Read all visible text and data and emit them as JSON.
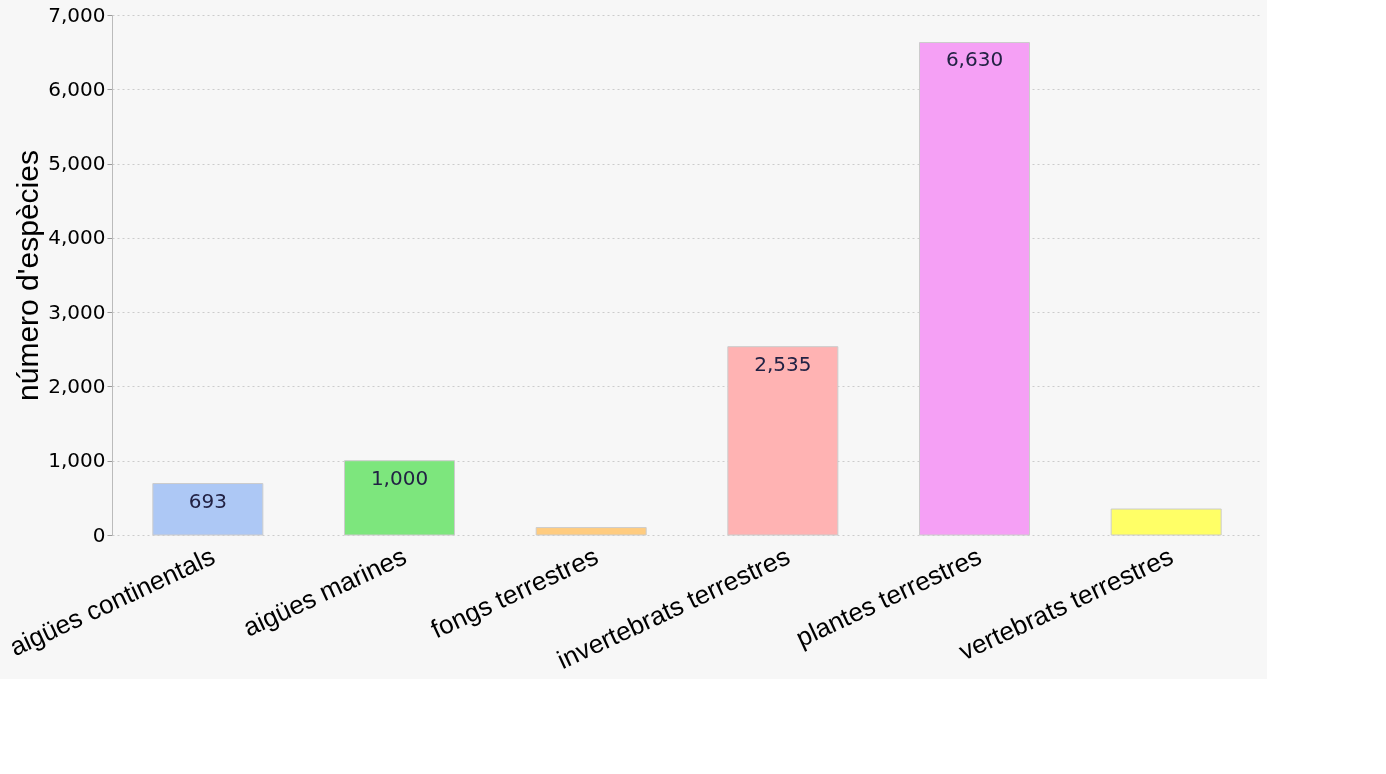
{
  "chart_data": {
    "type": "bar",
    "ylabel": "número d'espècies",
    "categories": [
      "aigües continentals",
      "aigües marines",
      "fongs terrestres",
      "invertebrats terrestres",
      "plantes terrestres",
      "vertebrats terrestres"
    ],
    "values": [
      693,
      1000,
      100,
      2535,
      6630,
      350
    ],
    "value_labels": [
      "693",
      "1,000",
      null,
      "2,535",
      "6,630",
      null
    ],
    "colors": [
      "#adc8f5",
      "#7de67d",
      "#ffcc80",
      "#ffb3b3",
      "#f5a0f5",
      "#ffff66"
    ],
    "ylim": [
      0,
      7000
    ],
    "yticks": [
      0,
      {
        "value": 1000,
        "label": "1,000"
      },
      {
        "value": 2000,
        "label": "2,000"
      },
      {
        "value": 3000,
        "label": "3,000"
      },
      {
        "value": 4000,
        "label": "4,000"
      },
      {
        "value": 5000,
        "label": "5,000"
      },
      {
        "value": 6000,
        "label": "6,000"
      },
      {
        "value": 7000,
        "label": "7,000"
      }
    ],
    "grid": "y"
  }
}
